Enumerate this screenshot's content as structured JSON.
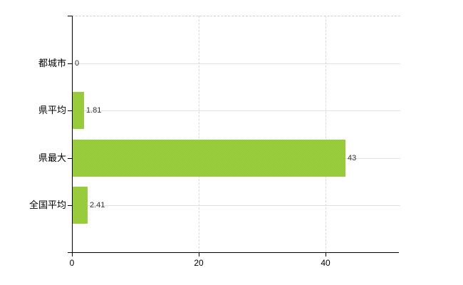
{
  "chart_data": {
    "type": "bar",
    "orientation": "horizontal",
    "title": "",
    "xlabel": "",
    "ylabel": "",
    "categories": [
      "都城市",
      "県平均",
      "県最大",
      "全国平均"
    ],
    "values": [
      0,
      1.81,
      43,
      2.41
    ],
    "value_labels": [
      "0",
      "1.81",
      "43",
      "2.41"
    ],
    "x_ticks": [
      0,
      20,
      40
    ],
    "x_tick_labels": [
      "0",
      "20",
      "40"
    ],
    "xlim": [
      0,
      51.8
    ],
    "grid": true,
    "legend": "none",
    "colors": {
      "bar_primary": "#86c43e",
      "bar_secondary": "#a9d23c",
      "axis": "#000000",
      "grid_horizontal": "#dde4dd",
      "grid_vertical": "#d9d9d9",
      "category_text": "#000000",
      "value_text": "#333333",
      "background": "#ffffff"
    }
  }
}
